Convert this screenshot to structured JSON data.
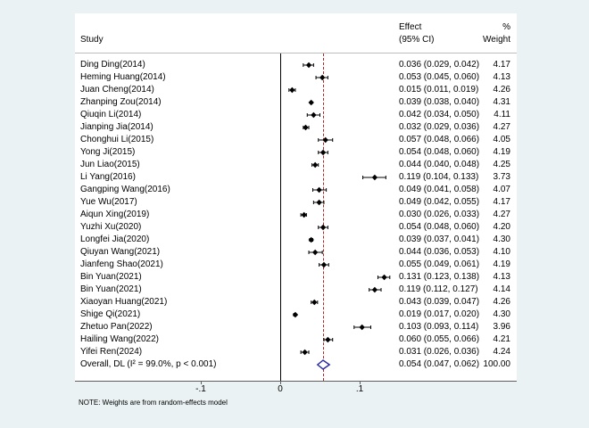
{
  "header": {
    "study": "Study",
    "effect_line1": "Effect",
    "effect_line2": "(95% CI)",
    "weight_line1": "%",
    "weight_line2": "Weight"
  },
  "note": "NOTE: Weights are from random-effects model",
  "chart_data": {
    "type": "forest",
    "title": "",
    "x_axis": {
      "ticks": [
        {
          "label": "-.1",
          "value": -0.1
        },
        {
          "label": "0",
          "value": 0
        },
        {
          "label": ".1",
          "value": 0.1
        }
      ]
    },
    "null_value": 0,
    "studies": [
      {
        "name": "Ding Ding(2014)",
        "effect": 0.036,
        "ci_low": 0.029,
        "ci_high": 0.042,
        "effect_label": "0.036 (0.029, 0.042)",
        "weight": "4.17"
      },
      {
        "name": "Heming Huang(2014)",
        "effect": 0.053,
        "ci_low": 0.045,
        "ci_high": 0.06,
        "effect_label": "0.053 (0.045, 0.060)",
        "weight": "4.13"
      },
      {
        "name": "Juan Cheng(2014)",
        "effect": 0.015,
        "ci_low": 0.011,
        "ci_high": 0.019,
        "effect_label": "0.015 (0.011, 0.019)",
        "weight": "4.26"
      },
      {
        "name": "Zhanping Zou(2014)",
        "effect": 0.039,
        "ci_low": 0.038,
        "ci_high": 0.04,
        "effect_label": "0.039 (0.038, 0.040)",
        "weight": "4.31"
      },
      {
        "name": "Qiuqin Li(2014)",
        "effect": 0.042,
        "ci_low": 0.034,
        "ci_high": 0.05,
        "effect_label": "0.042 (0.034, 0.050)",
        "weight": "4.11"
      },
      {
        "name": "Jianping Jia(2014)",
        "effect": 0.032,
        "ci_low": 0.029,
        "ci_high": 0.036,
        "effect_label": "0.032 (0.029, 0.036)",
        "weight": "4.27"
      },
      {
        "name": "Chonghui Li(2015)",
        "effect": 0.057,
        "ci_low": 0.048,
        "ci_high": 0.066,
        "effect_label": "0.057 (0.048, 0.066)",
        "weight": "4.05"
      },
      {
        "name": "Yong Ji(2015)",
        "effect": 0.054,
        "ci_low": 0.048,
        "ci_high": 0.06,
        "effect_label": "0.054 (0.048, 0.060)",
        "weight": "4.19"
      },
      {
        "name": "Jun Liao(2015)",
        "effect": 0.044,
        "ci_low": 0.04,
        "ci_high": 0.048,
        "effect_label": "0.044 (0.040, 0.048)",
        "weight": "4.25"
      },
      {
        "name": "Li Yang(2016)",
        "effect": 0.119,
        "ci_low": 0.104,
        "ci_high": 0.133,
        "effect_label": "0.119 (0.104, 0.133)",
        "weight": "3.73"
      },
      {
        "name": "Gangping Wang(2016)",
        "effect": 0.049,
        "ci_low": 0.041,
        "ci_high": 0.058,
        "effect_label": "0.049 (0.041, 0.058)",
        "weight": "4.07"
      },
      {
        "name": "Yue Wu(2017)",
        "effect": 0.049,
        "ci_low": 0.042,
        "ci_high": 0.055,
        "effect_label": "0.049 (0.042, 0.055)",
        "weight": "4.17"
      },
      {
        "name": "Aiqun Xing(2019)",
        "effect": 0.03,
        "ci_low": 0.026,
        "ci_high": 0.033,
        "effect_label": "0.030 (0.026, 0.033)",
        "weight": "4.27"
      },
      {
        "name": "Yuzhi Xu(2020)",
        "effect": 0.054,
        "ci_low": 0.048,
        "ci_high": 0.06,
        "effect_label": "0.054 (0.048, 0.060)",
        "weight": "4.20"
      },
      {
        "name": "Longfei Jia(2020)",
        "effect": 0.039,
        "ci_low": 0.037,
        "ci_high": 0.041,
        "effect_label": "0.039 (0.037, 0.041)",
        "weight": "4.30"
      },
      {
        "name": "Qiuyan Wang(2021)",
        "effect": 0.044,
        "ci_low": 0.036,
        "ci_high": 0.053,
        "effect_label": "0.044 (0.036, 0.053)",
        "weight": "4.10"
      },
      {
        "name": "Jianfeng Shao(2021)",
        "effect": 0.055,
        "ci_low": 0.049,
        "ci_high": 0.061,
        "effect_label": "0.055 (0.049, 0.061)",
        "weight": "4.19"
      },
      {
        "name": "Bin Yuan(2021)",
        "effect": 0.131,
        "ci_low": 0.123,
        "ci_high": 0.138,
        "effect_label": "0.131 (0.123, 0.138)",
        "weight": "4.13"
      },
      {
        "name": "Bin Yuan(2021)",
        "effect": 0.119,
        "ci_low": 0.112,
        "ci_high": 0.127,
        "effect_label": "0.119 (0.112, 0.127)",
        "weight": "4.14"
      },
      {
        "name": "Xiaoyan Huang(2021)",
        "effect": 0.043,
        "ci_low": 0.039,
        "ci_high": 0.047,
        "effect_label": "0.043 (0.039, 0.047)",
        "weight": "4.26"
      },
      {
        "name": "Shige Qi(2021)",
        "effect": 0.019,
        "ci_low": 0.017,
        "ci_high": 0.02,
        "effect_label": "0.019 (0.017, 0.020)",
        "weight": "4.30"
      },
      {
        "name": "Zhetuo Pan(2022)",
        "effect": 0.103,
        "ci_low": 0.093,
        "ci_high": 0.114,
        "effect_label": "0.103 (0.093, 0.114)",
        "weight": "3.96"
      },
      {
        "name": "Hailing Wang(2022)",
        "effect": 0.06,
        "ci_low": 0.055,
        "ci_high": 0.066,
        "effect_label": "0.060 (0.055, 0.066)",
        "weight": "4.21"
      },
      {
        "name": "Yifei Ren(2024)",
        "effect": 0.031,
        "ci_low": 0.026,
        "ci_high": 0.036,
        "effect_label": "0.031 (0.026, 0.036)",
        "weight": "4.24"
      }
    ],
    "overall": {
      "name": "Overall, DL (I² = 99.0%, p < 0.001)",
      "effect": 0.054,
      "ci_low": 0.047,
      "ci_high": 0.062,
      "effect_label": "0.054 (0.047, 0.062)",
      "weight": "100.00"
    },
    "colors": {
      "page_bg": "#eaf2f3",
      "plot_bg": "#ffffff",
      "marker": "#000000",
      "ci_line": "#000000",
      "zero_line": "#000000",
      "overall_dashed_line": "#b22222",
      "diamond_outline": "#2626a0",
      "diamond_fill": "#ffffff",
      "axis_line": "#5f5f5f"
    }
  }
}
